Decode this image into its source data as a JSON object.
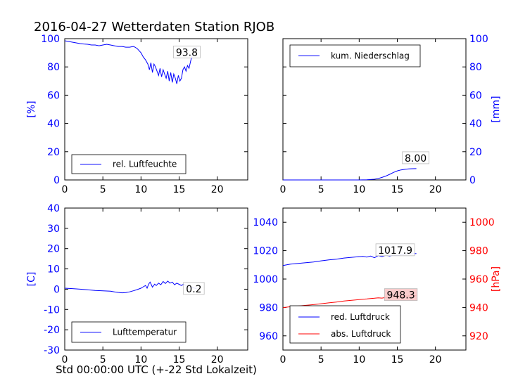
{
  "title": "2016-04-27 Wetterdaten Station RJOB",
  "xlabel": "Std 00:00:00 UTC (+-22 Std Lokalzeit)",
  "chart_data": [
    {
      "type": "line",
      "name": "humidity",
      "ylabel": "[%]",
      "ylabel_side": "left",
      "ylabel_color": "#0000ff",
      "xlim": [
        0,
        24
      ],
      "ylim": [
        0,
        100
      ],
      "xticks": [
        0,
        5,
        10,
        15,
        20
      ],
      "yticks": [
        0,
        20,
        40,
        60,
        80,
        100
      ],
      "tick_color": "#0000ff",
      "legend": "rel. Luftfeuchte",
      "legend_position": "lower-left",
      "annotation": "93.8",
      "series": [
        {
          "name": "rel. Luftfeuchte",
          "color": "#0000ff",
          "x": [
            0,
            0.5,
            1,
            1.5,
            2,
            2.5,
            3,
            3.5,
            4,
            4.5,
            5,
            5.5,
            6,
            6.5,
            7,
            7.5,
            8,
            8.5,
            9,
            9.2,
            9.5,
            10,
            10.3,
            10.6,
            10.9,
            11.1,
            11.3,
            11.5,
            11.7,
            11.9,
            12.1,
            12.3,
            12.5,
            12.7,
            12.9,
            13.1,
            13.3,
            13.5,
            13.7,
            13.9,
            14.1,
            14.3,
            14.5,
            14.7,
            14.9,
            15.1,
            15.3,
            15.5,
            15.7,
            15.9,
            16.1,
            16.3,
            16.5,
            16.7,
            16.9,
            17.1,
            17.3
          ],
          "y": [
            98.5,
            98,
            97.5,
            97,
            96.5,
            96.2,
            96,
            95.5,
            95.5,
            95,
            95.5,
            96,
            95.5,
            95,
            94.5,
            94.5,
            94,
            94,
            94.5,
            94,
            93,
            90,
            87,
            85,
            82,
            78,
            83,
            76,
            82,
            80,
            77,
            74,
            79,
            73,
            78,
            75,
            72,
            77,
            70,
            76,
            69,
            75,
            72,
            68,
            74,
            70,
            72,
            78,
            80,
            77,
            81,
            79,
            84,
            88,
            91,
            93,
            93.8
          ]
        }
      ]
    },
    {
      "type": "line",
      "name": "precipitation",
      "ylabel": "[mm]",
      "ylabel_side": "right",
      "ylabel_color": "#0000ff",
      "xlim": [
        0,
        24
      ],
      "ylim": [
        0,
        100
      ],
      "xticks": [
        0,
        5,
        10,
        15,
        20
      ],
      "yticks": [
        0,
        20,
        40,
        60,
        80,
        100
      ],
      "tick_color": "#0000ff",
      "legend": "kum. Niederschlag",
      "legend_position": "upper-left",
      "annotation": "8.00",
      "series": [
        {
          "name": "kum. Niederschlag",
          "color": "#0000ff",
          "x": [
            0,
            5,
            10,
            11,
            12,
            12.5,
            13,
            13.5,
            14,
            14.5,
            15,
            15.5,
            16,
            16.5,
            17,
            17.5
          ],
          "y": [
            0,
            0,
            0,
            0.1,
            0.5,
            1,
            1.8,
            2.8,
            4,
            5.3,
            6.4,
            7.1,
            7.5,
            7.8,
            7.95,
            8.0
          ]
        }
      ]
    },
    {
      "type": "line",
      "name": "temperature",
      "ylabel": "[C]",
      "ylabel_side": "left",
      "ylabel_color": "#0000ff",
      "xlim": [
        0,
        24
      ],
      "ylim": [
        -30,
        40
      ],
      "xticks": [
        0,
        5,
        10,
        15,
        20
      ],
      "yticks": [
        -30,
        -20,
        -10,
        0,
        10,
        20,
        30,
        40
      ],
      "tick_color": "#0000ff",
      "legend": "Lufttemperatur",
      "legend_position": "lower-left",
      "annotation": "0.2",
      "series": [
        {
          "name": "Lufttemperatur",
          "color": "#0000ff",
          "x": [
            0,
            1,
            2,
            3,
            4,
            5,
            6,
            6.5,
            7,
            7.5,
            8,
            8.5,
            9,
            9.5,
            10,
            10.3,
            10.6,
            10.8,
            11,
            11.2,
            11.5,
            11.8,
            12,
            12.3,
            12.6,
            12.9,
            13.2,
            13.5,
            13.8,
            14.1,
            14.4,
            14.7,
            15,
            15.3,
            15.6,
            16,
            16.5,
            17,
            17.3
          ],
          "y": [
            0.5,
            0.3,
            0,
            -0.3,
            -0.6,
            -0.8,
            -1,
            -1.3,
            -1.6,
            -1.8,
            -1.7,
            -1.3,
            -0.8,
            -0.2,
            0.5,
            1.2,
            1.8,
            0.5,
            2.5,
            3.5,
            1,
            2.5,
            1.8,
            3,
            2.2,
            3.8,
            2.8,
            4,
            3,
            3.5,
            2.2,
            3,
            2.4,
            1.8,
            2.5,
            1.6,
            1,
            0.6,
            0.2
          ]
        }
      ]
    },
    {
      "type": "line",
      "name": "pressure",
      "ylabel": "[hPa]",
      "ylabel_side": "right",
      "ylabel_color": "#ff0000",
      "xlim": [
        0,
        24
      ],
      "ylim_left": [
        950,
        1050
      ],
      "ylim_right": [
        910,
        1010
      ],
      "xticks": [
        0,
        5,
        10,
        15,
        20
      ],
      "yticks_left": [
        960,
        980,
        1000,
        1020,
        1040
      ],
      "yticks_right": [
        920,
        940,
        960,
        980,
        1000
      ],
      "tick_color_left": "#0000ff",
      "tick_color_right": "#ff0000",
      "legend_position": "lower-right",
      "series": [
        {
          "name": "red. Luftdruck",
          "color": "#0000ff",
          "axis": "left",
          "annotation": "1017.9",
          "x": [
            0,
            0.5,
            1,
            2,
            3,
            4,
            5,
            6,
            7,
            8,
            9,
            10,
            10.5,
            11,
            11.5,
            12,
            12.5,
            13,
            13.5,
            14,
            14.5,
            15,
            15.5,
            16,
            16.5,
            17,
            17.5
          ],
          "y": [
            1009.5,
            1010,
            1010.5,
            1011,
            1011.5,
            1012,
            1012.8,
            1013.5,
            1014,
            1014.8,
            1015.3,
            1015.8,
            1016,
            1015.5,
            1016.2,
            1015,
            1016.5,
            1015.8,
            1016.8,
            1016.2,
            1017,
            1016.6,
            1017.2,
            1017.4,
            1017.6,
            1017.8,
            1017.9
          ]
        },
        {
          "name": "abs. Luftdruck",
          "color": "#ff0000",
          "axis": "right",
          "annotation": "948.3",
          "x": [
            0,
            0.5,
            1,
            2,
            3,
            4,
            5,
            6,
            7,
            8,
            9,
            10,
            10.5,
            11,
            11.5,
            12,
            12.5,
            13,
            13.5,
            14,
            14.5,
            15,
            15.5,
            16,
            16.5,
            17,
            17.5
          ],
          "y": [
            939.8,
            940.2,
            940.5,
            941,
            941.5,
            942,
            942.6,
            943.2,
            943.8,
            944.5,
            945,
            945.5,
            945.8,
            946,
            946.3,
            946.5,
            946.8,
            946.6,
            947.1,
            947.3,
            947.5,
            947.4,
            947.8,
            948,
            948.1,
            948.2,
            948.3
          ]
        }
      ]
    }
  ]
}
